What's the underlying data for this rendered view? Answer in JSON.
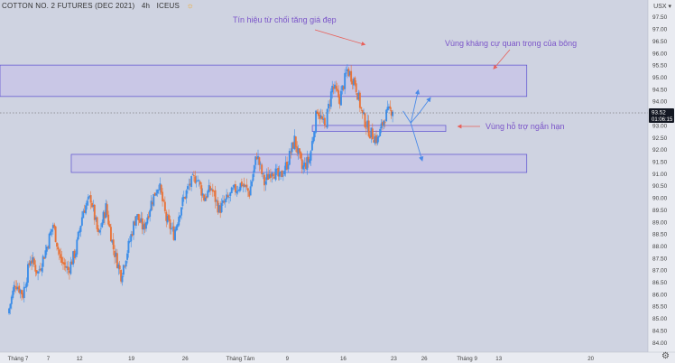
{
  "header": {
    "symbol": "COTTON NO. 2 FUTURES (DEC 2021)",
    "interval": "4h",
    "exchange": "ICEUS",
    "status_icon": "sun-icon"
  },
  "currency_menu": "USX ▾",
  "settings_icon": "gear-icon",
  "chart_data": {
    "type": "candlestick",
    "y_ticks": [
      "97.50",
      "97.00",
      "96.50",
      "96.00",
      "95.50",
      "95.00",
      "94.50",
      "94.00",
      "93.50",
      "93.00",
      "92.50",
      "92.00",
      "91.50",
      "91.00",
      "90.50",
      "90.00",
      "89.50",
      "89.00",
      "88.50",
      "88.00",
      "87.50",
      "87.00",
      "86.50",
      "86.00",
      "85.50",
      "85.00",
      "84.50",
      "84.00"
    ],
    "ylim": [
      83.6,
      98.05
    ],
    "x_ticks": [
      "Tháng 7",
      "7",
      "12",
      "19",
      "26",
      "Tháng Tám",
      "9",
      "16",
      "23",
      "26",
      "Tháng 9",
      "13",
      "20"
    ],
    "last_price": "93.52",
    "countdown": "01:06:15",
    "colors": {
      "up": "#3d8ee8",
      "down": "#e8743a",
      "zone_fill": "#c8c4e6",
      "zone_border": "#5a4fcf",
      "annotation": "#7b55c9",
      "projection": "#4a8ae8",
      "arrow": "#e8605a",
      "last_price_box": "#131722"
    },
    "price_path": [
      85.2,
      86.5,
      86.0,
      87.5,
      86.9,
      87.8,
      88.9,
      87.4,
      87.0,
      87.8,
      89.5,
      90.0,
      88.4,
      89.6,
      87.9,
      86.8,
      88.0,
      89.3,
      88.7,
      89.8,
      90.6,
      89.1,
      88.5,
      89.7,
      90.5,
      90.9,
      90.0,
      90.4,
      89.5,
      89.9,
      90.3,
      90.6,
      90.2,
      91.8,
      90.6,
      91.2,
      90.8,
      91.4,
      92.4,
      91.2,
      91.6,
      93.7,
      92.9,
      94.6,
      94.1,
      95.3,
      94.8,
      93.4,
      92.7,
      92.4,
      93.4,
      93.7
    ],
    "zones": [
      {
        "name": "resistance",
        "label": "Vùng kháng cự quan trọng của bông",
        "y_top": 95.5,
        "y_bottom": 94.2,
        "x_from": 0.0,
        "x_to": 0.813
      },
      {
        "name": "short-support",
        "label": "Vùng hỗ trợ ngắn hạn",
        "y_top": 93.0,
        "y_bottom": 92.75,
        "x_from": 0.482,
        "x_to": 0.688
      },
      {
        "name": "support",
        "label": "",
        "y_top": 91.8,
        "y_bottom": 91.05,
        "x_from": 0.11,
        "x_to": 0.813
      }
    ],
    "annotations": [
      {
        "name": "rejection-label",
        "text": "Tín hiệu từ chối tăng giá đẹp"
      }
    ],
    "projections": [
      {
        "name": "bullish-path",
        "points": [
          [
            0.622,
            93.6
          ],
          [
            0.634,
            93.1
          ],
          [
            0.648,
            93.55
          ],
          [
            0.663,
            94.1
          ]
        ]
      },
      {
        "name": "bullish-path-alt",
        "points": [
          [
            0.634,
            93.1
          ],
          [
            0.645,
            94.4
          ]
        ]
      },
      {
        "name": "bearish-path",
        "points": [
          [
            0.634,
            93.1
          ],
          [
            0.651,
            91.6
          ]
        ]
      }
    ]
  }
}
